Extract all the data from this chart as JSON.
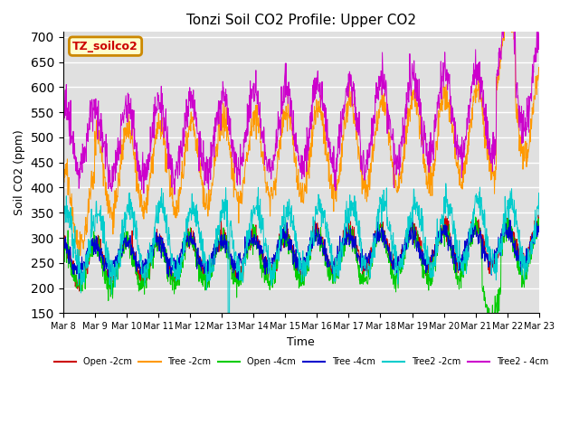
{
  "title": "Tonzi Soil CO2 Profile: Upper CO2",
  "xlabel": "Time",
  "ylabel": "Soil CO2 (ppm)",
  "ylim": [
    150,
    710
  ],
  "yticks": [
    150,
    200,
    250,
    300,
    350,
    400,
    450,
    500,
    550,
    600,
    650,
    700
  ],
  "annotation": "TZ_soilco2",
  "annotation_box_color": "#ffffcc",
  "annotation_text_color": "#cc0000",
  "annotation_border_color": "#cc8800",
  "plot_bg_color": "#e0e0e0",
  "n_days": 15,
  "start_day": 8,
  "colors": [
    "#cc0000",
    "#ff9900",
    "#00cc00",
    "#0000cc",
    "#00cccc",
    "#cc00cc"
  ],
  "labels": [
    "Open -2cm",
    "Tree -2cm",
    "Open -4cm",
    "Tree -4cm",
    "Tree2 -2cm",
    "Tree2 - 4cm"
  ]
}
